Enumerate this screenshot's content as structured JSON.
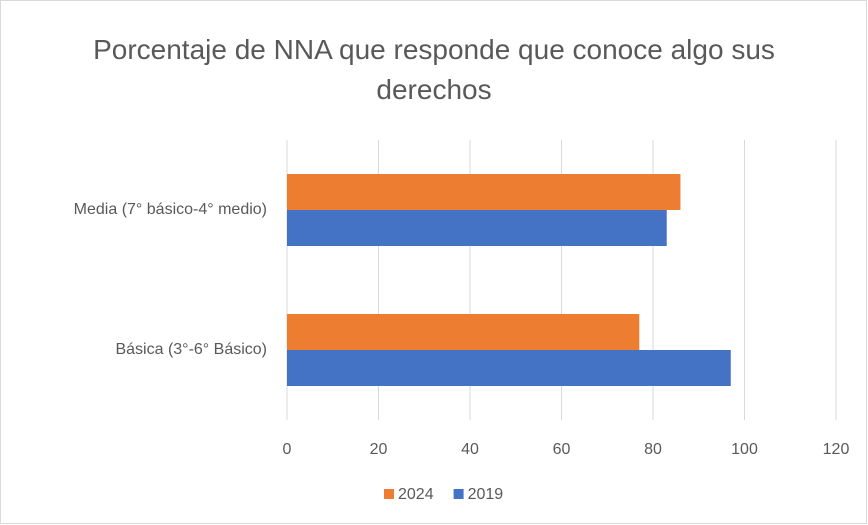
{
  "chart_data": {
    "type": "hbar",
    "title": "Porcentaje de NNA que responde que conoce algo sus derechos",
    "categories": [
      "Media (7° básico-4° medio)",
      "Básica (3°-6° Básico)"
    ],
    "series": [
      {
        "name": "2024",
        "color": "#ed7d31",
        "values": [
          86,
          77
        ]
      },
      {
        "name": "2019",
        "color": "#4472c4",
        "values": [
          83,
          97
        ]
      }
    ],
    "xlim": [
      0,
      120
    ],
    "xticks": [
      0,
      20,
      40,
      60,
      80,
      100,
      120
    ],
    "grid": true,
    "legend": "bottom"
  }
}
